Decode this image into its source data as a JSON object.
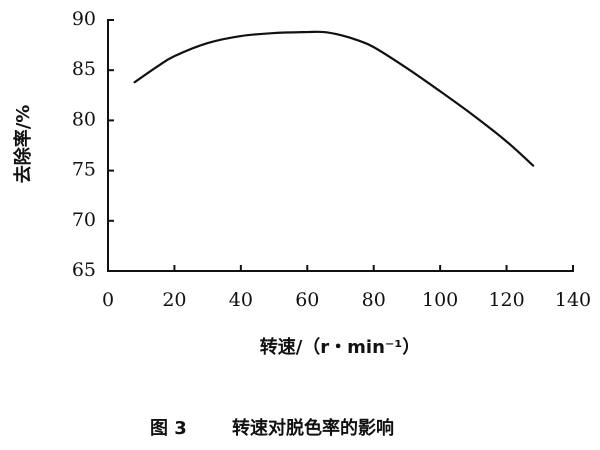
{
  "chart_data": {
    "type": "line",
    "xlabel": "转速/（r・min⁻¹）",
    "ylabel": "去除率/%",
    "xlim": [
      0,
      140
    ],
    "ylim": [
      65,
      90
    ],
    "x_ticks": [
      0,
      20,
      40,
      60,
      80,
      100,
      120,
      140
    ],
    "y_ticks": [
      65,
      70,
      75,
      80,
      85,
      90
    ],
    "x_tick_labels": [
      "0",
      "20",
      "40",
      "60",
      "80",
      "100",
      "120",
      "140"
    ],
    "y_tick_labels": [
      "65",
      "70",
      "75",
      "80",
      "85",
      "90"
    ],
    "grid": false,
    "series": [
      {
        "x": [
          8,
          15,
          20,
          30,
          40,
          50,
          60,
          65,
          70,
          75,
          80,
          90,
          100,
          110,
          120,
          128
        ],
        "y": [
          83.8,
          85.4,
          86.4,
          87.7,
          88.4,
          88.7,
          88.8,
          88.8,
          88.5,
          88.0,
          87.3,
          85.2,
          82.9,
          80.5,
          77.9,
          75.5
        ]
      }
    ]
  },
  "caption": {
    "figure_number": "图 3",
    "title": "转速对脱色率的影响"
  }
}
